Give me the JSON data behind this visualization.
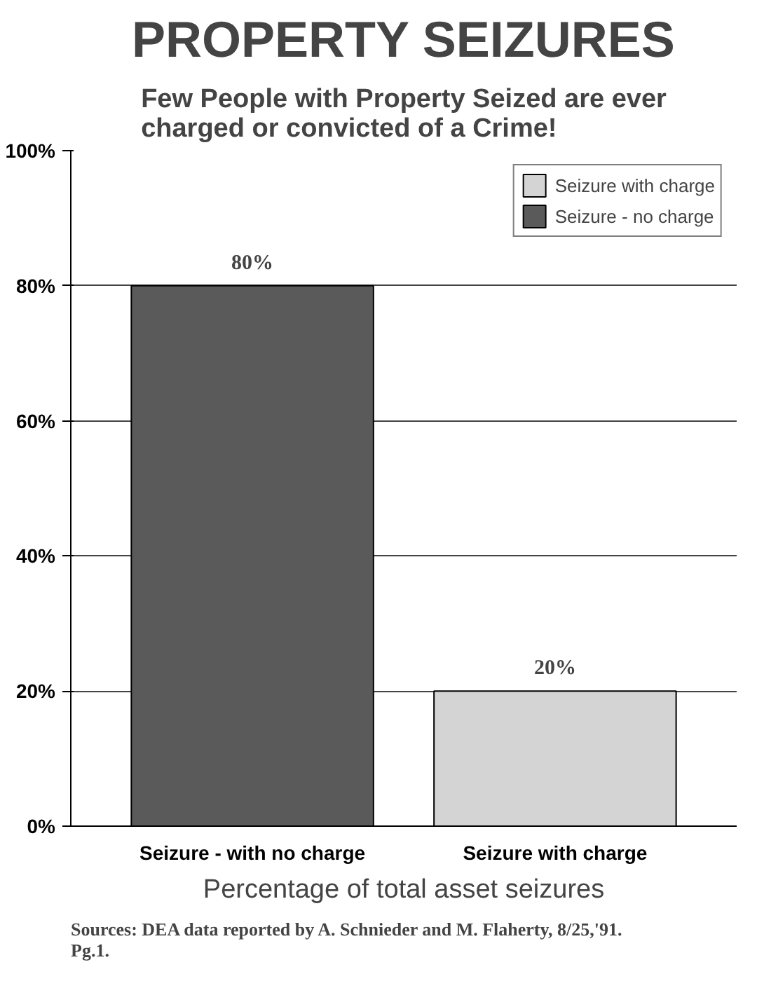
{
  "chart_data": {
    "type": "bar",
    "title": "PROPERTY SEIZURES",
    "subtitle": "Few People with Property Seized are ever charged or convicted of a Crime!",
    "xlabel": "Percentage of total asset seizures",
    "annotations": [
      "Sources: DEA data reported by A. Schnieder and M. Flaherty, 8/25,'91. Pg.1."
    ],
    "categories": [
      "Seizure - with no charge",
      "Seizure with charge"
    ],
    "series": [
      {
        "name": "Seizure with charge",
        "color": "#d4d4d4",
        "values": [
          null,
          20
        ],
        "value_labels": [
          null,
          "20%"
        ]
      },
      {
        "name": "Seizure - no charge",
        "color": "#5a5a5a",
        "values": [
          80,
          null
        ],
        "value_labels": [
          "80%",
          null
        ]
      }
    ],
    "ylim": [
      0,
      100
    ],
    "yticks": [
      {
        "value": 0,
        "label": "0%"
      },
      {
        "value": 20,
        "label": "20%"
      },
      {
        "value": 40,
        "label": "40%"
      },
      {
        "value": 60,
        "label": "60%"
      },
      {
        "value": 80,
        "label": "80%"
      },
      {
        "value": 100,
        "label": "100%"
      }
    ],
    "grid": "y",
    "legend": "top right"
  }
}
